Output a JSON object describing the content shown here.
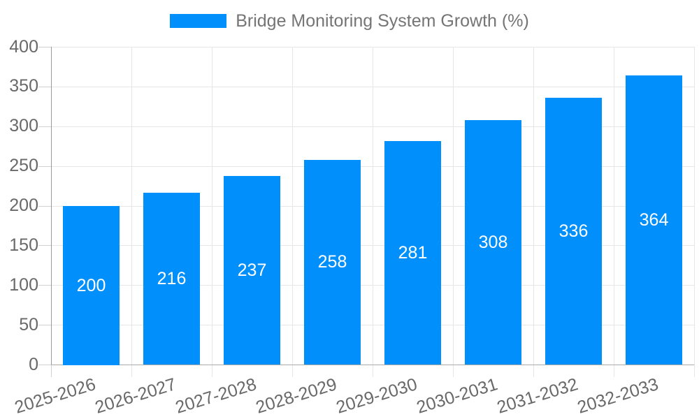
{
  "chart_data": {
    "type": "bar",
    "title": "Bridge Monitoring System Growth (%)",
    "categories": [
      "2025-2026",
      "2026-2027",
      "2027-2028",
      "2028-2029",
      "2029-2030",
      "2030-2031",
      "2031-2032",
      "2032-2033"
    ],
    "values": [
      200,
      216,
      237,
      258,
      281,
      308,
      336,
      364
    ],
    "ylim": [
      0,
      400
    ],
    "ytick_step": 50,
    "ytick_labels": [
      "0",
      "50",
      "100",
      "150",
      "200",
      "250",
      "300",
      "350",
      "400"
    ],
    "grid": true,
    "legend_position": "top",
    "value_labels_position": "center-inside",
    "colors": {
      "bar": "#008FFB",
      "bar_value_label": "#ffffff",
      "legend_text": "#757575",
      "axis_label": "#696969",
      "gridline": "#e6e6e6",
      "axis_line": "#9a9a9a",
      "bottom_axis_line": "#ababab",
      "tick": "#d2d2d2",
      "background": "#ffffff"
    }
  }
}
